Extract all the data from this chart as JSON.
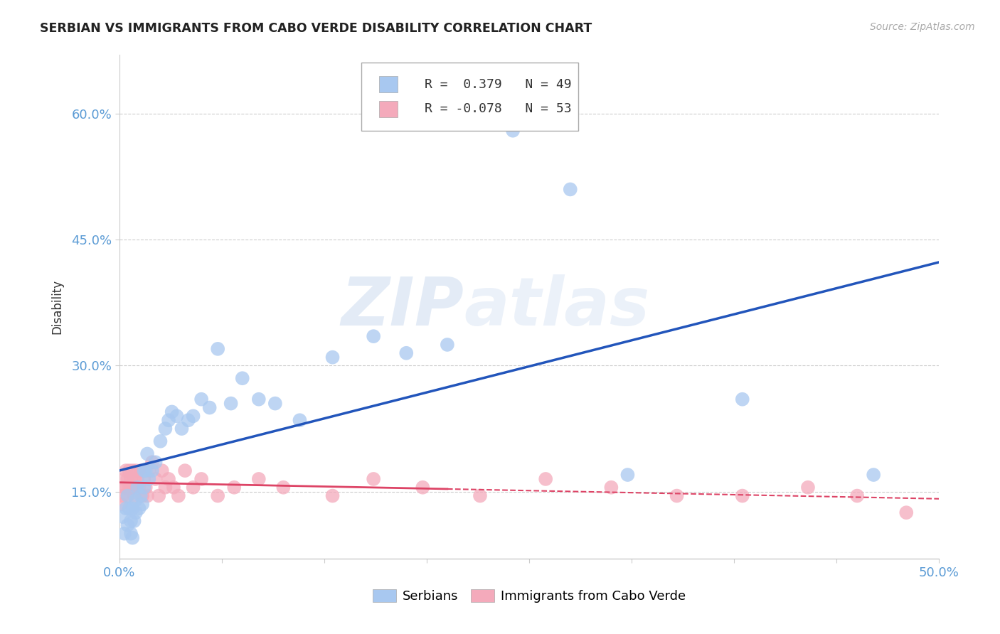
{
  "title": "SERBIAN VS IMMIGRANTS FROM CABO VERDE DISABILITY CORRELATION CHART",
  "source": "Source: ZipAtlas.com",
  "ylabel_label": "Disability",
  "xlim": [
    0.0,
    0.5
  ],
  "ylim": [
    0.07,
    0.67
  ],
  "xticks": [
    0.0,
    0.0625,
    0.125,
    0.1875,
    0.25,
    0.3125,
    0.375,
    0.4375,
    0.5
  ],
  "xtick_labels_show": [
    "0.0%",
    "",
    "",
    "",
    "",
    "",
    "",
    "",
    "50.0%"
  ],
  "yticks": [
    0.15,
    0.3,
    0.45,
    0.6
  ],
  "ytick_labels": [
    "15.0%",
    "30.0%",
    "45.0%",
    "60.0%"
  ],
  "background_color": "#ffffff",
  "grid_color": "#cccccc",
  "watermark_zip": "ZIP",
  "watermark_atlas": "atlas",
  "serbian_color": "#a8c8f0",
  "cabo_verde_color": "#f4aabb",
  "serbian_line_color": "#2255bb",
  "cabo_verde_line_color": "#dd4466",
  "legend_R_serbian": " 0.379",
  "legend_N_serbian": "49",
  "legend_R_cabo": "-0.078",
  "legend_N_cabo": "53",
  "serbian_x": [
    0.002,
    0.003,
    0.004,
    0.005,
    0.005,
    0.006,
    0.007,
    0.007,
    0.008,
    0.008,
    0.009,
    0.01,
    0.01,
    0.011,
    0.012,
    0.013,
    0.014,
    0.015,
    0.015,
    0.016,
    0.017,
    0.018,
    0.02,
    0.022,
    0.025,
    0.028,
    0.03,
    0.032,
    0.035,
    0.038,
    0.042,
    0.045,
    0.05,
    0.055,
    0.06,
    0.068,
    0.075,
    0.085,
    0.095,
    0.11,
    0.13,
    0.155,
    0.175,
    0.2,
    0.24,
    0.275,
    0.31,
    0.38,
    0.46
  ],
  "serbian_y": [
    0.12,
    0.1,
    0.13,
    0.11,
    0.145,
    0.13,
    0.1,
    0.115,
    0.095,
    0.13,
    0.115,
    0.14,
    0.125,
    0.155,
    0.13,
    0.145,
    0.135,
    0.155,
    0.175,
    0.175,
    0.195,
    0.165,
    0.175,
    0.185,
    0.21,
    0.225,
    0.235,
    0.245,
    0.24,
    0.225,
    0.235,
    0.24,
    0.26,
    0.25,
    0.32,
    0.255,
    0.285,
    0.26,
    0.255,
    0.235,
    0.31,
    0.335,
    0.315,
    0.325,
    0.58,
    0.51,
    0.17,
    0.26,
    0.17
  ],
  "cabo_verde_x": [
    0.001,
    0.002,
    0.003,
    0.003,
    0.004,
    0.004,
    0.005,
    0.005,
    0.006,
    0.006,
    0.007,
    0.007,
    0.008,
    0.008,
    0.009,
    0.009,
    0.01,
    0.01,
    0.011,
    0.012,
    0.013,
    0.014,
    0.015,
    0.015,
    0.016,
    0.017,
    0.018,
    0.02,
    0.022,
    0.024,
    0.026,
    0.028,
    0.03,
    0.033,
    0.036,
    0.04,
    0.045,
    0.05,
    0.06,
    0.07,
    0.085,
    0.1,
    0.13,
    0.155,
    0.185,
    0.22,
    0.26,
    0.3,
    0.34,
    0.38,
    0.42,
    0.45,
    0.48
  ],
  "cabo_verde_y": [
    0.135,
    0.145,
    0.155,
    0.165,
    0.155,
    0.175,
    0.145,
    0.165,
    0.155,
    0.175,
    0.155,
    0.165,
    0.155,
    0.175,
    0.145,
    0.165,
    0.155,
    0.175,
    0.165,
    0.155,
    0.175,
    0.145,
    0.165,
    0.175,
    0.155,
    0.145,
    0.175,
    0.185,
    0.165,
    0.145,
    0.175,
    0.155,
    0.165,
    0.155,
    0.145,
    0.175,
    0.155,
    0.165,
    0.145,
    0.155,
    0.165,
    0.155,
    0.145,
    0.165,
    0.155,
    0.145,
    0.165,
    0.155,
    0.145,
    0.145,
    0.155,
    0.145,
    0.125
  ]
}
